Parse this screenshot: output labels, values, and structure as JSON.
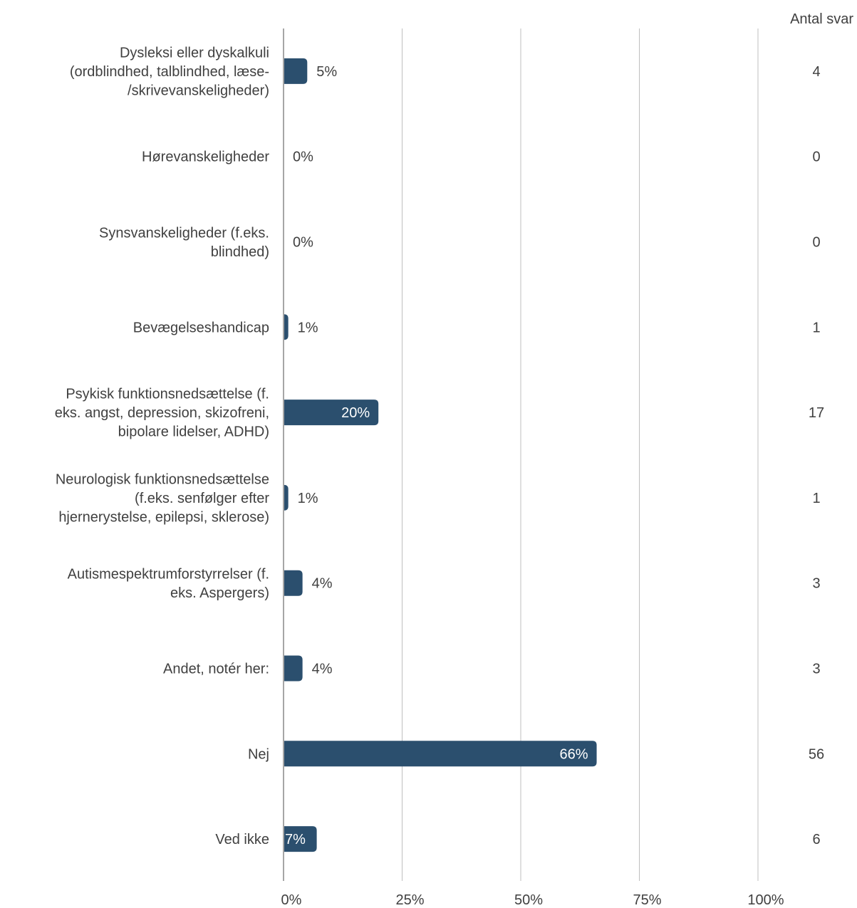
{
  "chart_data": {
    "type": "bar",
    "orientation": "horizontal",
    "title": "",
    "xlabel": "",
    "ylabel": "",
    "xlim": [
      0,
      100
    ],
    "x_ticks": [
      "0%",
      "25%",
      "50%",
      "75%",
      "100%"
    ],
    "grid": true,
    "bar_color": "#2b4f6e",
    "count_column_header": "Antal svar",
    "categories": [
      [
        "Dysleksi eller dyskalkuli",
        "(ordblindhed, talblindhed, læse-",
        "/skrivevanskeligheder)"
      ],
      [
        "Hørevanskeligheder"
      ],
      [
        "Synsvanskeligheder (f.eks.",
        "blindhed)"
      ],
      [
        "Bevægelseshandicap"
      ],
      [
        "Psykisk funktionsnedsættelse (f.",
        "eks. angst, depression, skizofreni,",
        "bipolare lidelser, ADHD)"
      ],
      [
        "Neurologisk funktionsnedsættelse",
        "(f.eks. senfølger efter",
        "hjernerystelse, epilepsi, sklerose)"
      ],
      [
        "Autismespektrumforstyrrelser (f.",
        "eks. Aspergers)"
      ],
      [
        "Andet, notér her:"
      ],
      [
        "Nej"
      ],
      [
        "Ved ikke"
      ]
    ],
    "values": [
      5,
      0,
      0,
      1,
      20,
      1,
      4,
      4,
      66,
      7
    ],
    "value_labels": [
      "5%",
      "0%",
      "0%",
      "1%",
      "20%",
      "1%",
      "4%",
      "4%",
      "66%",
      "7%"
    ],
    "counts": [
      "4",
      "0",
      "0",
      "1",
      "17",
      "1",
      "3",
      "3",
      "56",
      "6"
    ]
  }
}
